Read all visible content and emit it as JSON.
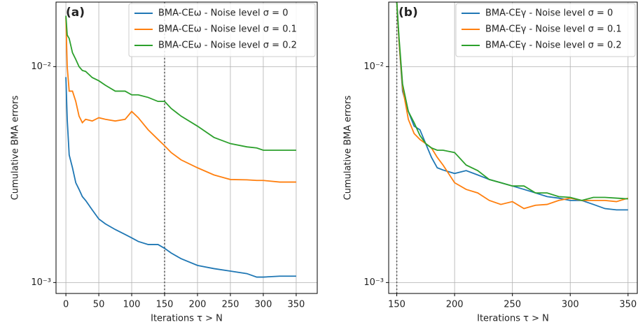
{
  "chart_data": [
    {
      "type": "line",
      "annotation": "(a)",
      "xlabel": "Iterations τ > N",
      "ylabel": "Cumulative BMA errors",
      "log_y": true,
      "grid": true,
      "legend": "upper right",
      "vline": 150,
      "xlim": [
        -15,
        382
      ],
      "xticks": [
        0,
        50,
        100,
        150,
        200,
        250,
        300,
        350
      ],
      "ylim": [
        0.00089,
        0.0199
      ],
      "yticks": [
        {
          "value": 0.01,
          "label": "10⁻²"
        },
        {
          "value": 0.001,
          "label": "10⁻³"
        }
      ],
      "x": [
        0,
        2,
        5,
        10,
        15,
        20,
        25,
        30,
        40,
        50,
        60,
        75,
        90,
        100,
        110,
        125,
        140,
        150,
        160,
        175,
        200,
        225,
        250,
        275,
        290,
        300,
        325,
        350
      ],
      "series": [
        {
          "name": "BMA-CEω - Noise level σ = 0",
          "color": "#1f77b4",
          "values": [
            0.00894,
            0.0057,
            0.0039,
            0.0034,
            0.0029,
            0.0027,
            0.0025,
            0.0024,
            0.00217,
            0.00197,
            0.00187,
            0.00176,
            0.00167,
            0.00161,
            0.00155,
            0.0015,
            0.0015,
            0.00144,
            0.00137,
            0.00129,
            0.0012,
            0.00116,
            0.00113,
            0.0011,
            0.00106,
            0.00106,
            0.00107,
            0.00107
          ]
        },
        {
          "name": "BMA-CEω - Noise level σ = 0.1",
          "color": "#ff7f0e",
          "values": [
            0.0169,
            0.01,
            0.0077,
            0.0077,
            0.0069,
            0.0059,
            0.0055,
            0.0057,
            0.0056,
            0.0058,
            0.0057,
            0.0056,
            0.0057,
            0.0062,
            0.0058,
            0.0051,
            0.0046,
            0.0043,
            0.004,
            0.0037,
            0.0034,
            0.00315,
            0.003,
            0.00299,
            0.00297,
            0.00297,
            0.00292,
            0.00292
          ]
        },
        {
          "name": "BMA-CEω - Noise level σ = 0.2",
          "color": "#2ca02c",
          "values": [
            0.0172,
            0.014,
            0.0135,
            0.0116,
            0.0108,
            0.01,
            0.0096,
            0.0095,
            0.0089,
            0.0086,
            0.0082,
            0.0077,
            0.0077,
            0.0074,
            0.0074,
            0.0072,
            0.0069,
            0.0069,
            0.0064,
            0.0059,
            0.0053,
            0.0047,
            0.0044,
            0.00425,
            0.0042,
            0.0041,
            0.0041,
            0.0041
          ]
        }
      ]
    },
    {
      "type": "line",
      "annotation": "(b)",
      "xlabel": "Iterations τ > N",
      "ylabel": "Cumulative BMA errors",
      "log_y": true,
      "grid": true,
      "legend": "upper right",
      "vline": 150,
      "xlim": [
        143,
        358
      ],
      "xticks": [
        150,
        200,
        250,
        300,
        350
      ],
      "ylim": [
        0.00089,
        0.0199
      ],
      "yticks": [
        {
          "value": 0.01,
          "label": "10⁻²"
        },
        {
          "value": 0.001,
          "label": "10⁻³"
        }
      ],
      "x": [
        150,
        152,
        155,
        160,
        165,
        170,
        175,
        180,
        185,
        190,
        200,
        210,
        220,
        230,
        240,
        250,
        260,
        270,
        280,
        290,
        300,
        310,
        320,
        330,
        340,
        350
      ],
      "series": [
        {
          "name": "BMA-CEγ - Noise level σ = 0",
          "color": "#1f77b4",
          "values": [
            0.02,
            0.013,
            0.0077,
            0.0062,
            0.0053,
            0.0051,
            0.0044,
            0.0038,
            0.0034,
            0.00332,
            0.0032,
            0.0033,
            0.00315,
            0.003,
            0.0029,
            0.0028,
            0.0027,
            0.0026,
            0.0025,
            0.00246,
            0.0024,
            0.0024,
            0.0023,
            0.0022,
            0.00217,
            0.00217
          ]
        },
        {
          "name": "BMA-CEγ - Noise level σ = 0.1",
          "color": "#ff7f0e",
          "values": [
            0.02,
            0.013,
            0.008,
            0.0057,
            0.0049,
            0.0046,
            0.0044,
            0.0042,
            0.0038,
            0.0035,
            0.0029,
            0.0027,
            0.0026,
            0.0024,
            0.0023,
            0.00237,
            0.0022,
            0.00228,
            0.0023,
            0.0024,
            0.00246,
            0.0024,
            0.0024,
            0.0024,
            0.00237,
            0.00246
          ]
        },
        {
          "name": "BMA-CEγ - Noise level σ = 0.2",
          "color": "#2ca02c",
          "values": [
            0.02,
            0.0135,
            0.0083,
            0.0062,
            0.0055,
            0.0048,
            0.0044,
            0.0042,
            0.0041,
            0.0041,
            0.004,
            0.0035,
            0.0033,
            0.003,
            0.0029,
            0.0028,
            0.0028,
            0.0026,
            0.0026,
            0.0025,
            0.00248,
            0.0024,
            0.00248,
            0.00248,
            0.00246,
            0.00244
          ]
        }
      ]
    }
  ]
}
